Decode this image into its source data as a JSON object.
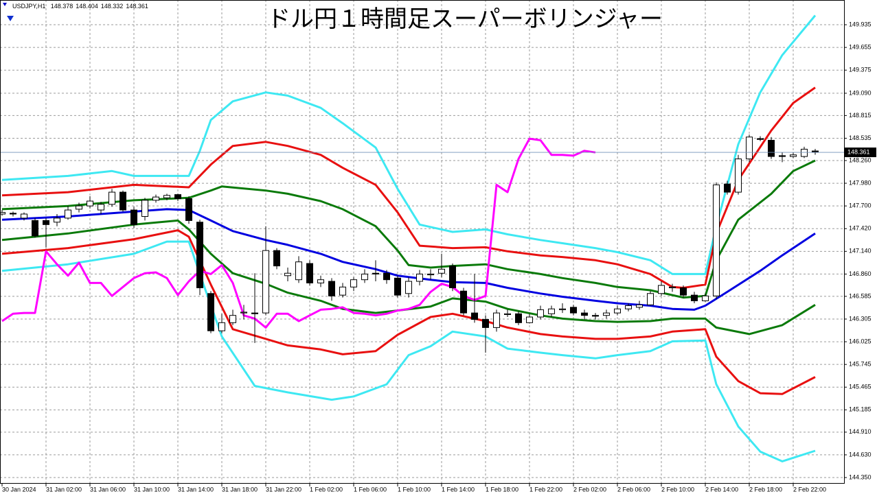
{
  "chart_data": {
    "type": "candlestick",
    "title": "ドル円１時間足スーパーボリンジャー",
    "symbol": "USDJPY,H1",
    "categories": [
      "30 Jan 2024",
      null,
      null,
      null,
      "31 Jan 02:00",
      null,
      null,
      null,
      "31 Jan 06:00",
      null,
      null,
      null,
      "31 Jan 10:00",
      null,
      null,
      null,
      "31 Jan 14:00",
      null,
      null,
      null,
      "31 Jan 18:00",
      null,
      null,
      null,
      "31 Jan 22:00",
      null,
      null,
      null,
      "1 Feb 02:00",
      null,
      null,
      null,
      "1 Feb 06:00",
      null,
      null,
      null,
      "1 Feb 10:00",
      null,
      null,
      null,
      "1 Feb 14:00",
      null,
      null,
      null,
      "1 Feb 18:00",
      null,
      null,
      null,
      "1 Feb 22:00",
      null,
      null,
      null,
      "2 Feb 02:00",
      null,
      null,
      null,
      "2 Feb 06:00",
      null,
      null,
      null,
      "2 Feb 10:00",
      null,
      null,
      null,
      "2 Feb 14:00",
      null,
      null,
      null,
      "2 Feb 18:00",
      null,
      null,
      null,
      "2 Feb 22:00",
      null,
      null
    ],
    "open": [
      147.6,
      147.61,
      147.55,
      147.52,
      147.52,
      147.5,
      147.55,
      147.66,
      147.7,
      147.65,
      147.72,
      147.87,
      147.65,
      147.57,
      147.77,
      147.8,
      147.84,
      147.79,
      147.5,
      146.62,
      146.16,
      146.26,
      146.38,
      146.38,
      146.38,
      147.15,
      146.84,
      146.79,
      146.99,
      146.75,
      146.77,
      146.6,
      146.7,
      146.79,
      146.87,
      146.87,
      146.81,
      146.62,
      146.77,
      146.85,
      146.87,
      146.96,
      146.65,
      146.38,
      146.3,
      146.2,
      146.36,
      146.37,
      146.26,
      146.33,
      146.37,
      146.42,
      146.45,
      146.38,
      146.35,
      146.35,
      146.38,
      146.43,
      146.45,
      146.48,
      146.62,
      146.69,
      146.69,
      146.6,
      146.53,
      146.59,
      147.97,
      147.87,
      148.28,
      148.53,
      148.51,
      148.32,
      148.31,
      148.31,
      148.378
    ],
    "high": [
      147.65,
      147.63,
      147.62,
      147.55,
      147.55,
      147.6,
      147.7,
      147.74,
      147.82,
      147.75,
      147.91,
      147.89,
      147.69,
      147.8,
      147.84,
      147.85,
      147.85,
      147.82,
      147.53,
      146.65,
      146.37,
      146.42,
      146.48,
      146.87,
      147.45,
      147.18,
      146.94,
      147.08,
      147.03,
      146.84,
      146.81,
      146.75,
      146.82,
      146.92,
      147.03,
      146.91,
      146.84,
      146.82,
      146.91,
      146.92,
      147.11,
      146.99,
      146.69,
      146.86,
      146.35,
      146.42,
      146.42,
      146.4,
      146.37,
      146.47,
      146.47,
      146.5,
      146.48,
      146.42,
      146.38,
      146.42,
      146.47,
      146.5,
      146.53,
      146.65,
      146.77,
      146.74,
      146.72,
      146.64,
      146.62,
      147.99,
      148.01,
      148.33,
      148.58,
      148.56,
      148.55,
      148.36,
      148.36,
      148.43,
      148.404
    ],
    "low": [
      147.58,
      147.57,
      147.52,
      147.31,
      147.19,
      147.45,
      147.53,
      147.62,
      147.67,
      147.6,
      147.69,
      147.63,
      147.43,
      147.52,
      147.74,
      147.77,
      147.76,
      147.48,
      146.6,
      146.13,
      146.13,
      146.23,
      146.3,
      146.01,
      146.35,
      146.92,
      146.77,
      146.75,
      146.72,
      146.7,
      146.53,
      146.57,
      146.65,
      146.75,
      146.77,
      146.74,
      146.57,
      146.57,
      146.72,
      146.79,
      146.82,
      146.65,
      146.35,
      146.26,
      145.89,
      146.15,
      146.33,
      146.23,
      146.25,
      146.3,
      146.33,
      146.38,
      146.35,
      146.3,
      146.3,
      146.31,
      146.35,
      146.4,
      146.42,
      146.47,
      146.59,
      146.64,
      146.57,
      146.5,
      146.52,
      146.55,
      147.84,
      147.84,
      148.24,
      148.5,
      148.28,
      148.24,
      148.29,
      148.29,
      148.332
    ],
    "close": [
      147.62,
      147.6,
      147.6,
      147.33,
      147.47,
      147.55,
      147.65,
      147.7,
      147.76,
      147.72,
      147.87,
      147.65,
      147.47,
      147.77,
      147.81,
      147.83,
      147.79,
      147.52,
      146.69,
      146.16,
      146.26,
      146.35,
      146.39,
      146.37,
      147.15,
      146.96,
      146.87,
      147.01,
      146.75,
      146.79,
      146.59,
      146.7,
      146.79,
      146.86,
      146.86,
      146.79,
      146.6,
      146.77,
      146.86,
      146.86,
      146.92,
      146.69,
      146.38,
      146.3,
      146.2,
      146.38,
      146.37,
      146.26,
      146.33,
      146.42,
      146.43,
      146.43,
      146.38,
      146.35,
      146.34,
      146.38,
      146.43,
      146.47,
      146.48,
      146.62,
      146.72,
      146.7,
      146.6,
      146.53,
      146.59,
      147.96,
      147.87,
      148.28,
      148.55,
      148.52,
      148.31,
      148.31,
      148.33,
      148.4,
      148.361
    ],
    "up_color": "#ffffff",
    "down_color": "#000000",
    "series": [
      {
        "color": "#3ee8f2",
        "x": [
          0,
          6,
          10,
          12,
          17,
          18,
          19,
          21,
          24,
          26,
          29,
          31,
          34,
          36,
          38,
          41,
          44,
          46,
          49,
          51,
          54,
          56,
          59,
          61,
          64,
          65,
          67,
          69,
          71,
          74
        ],
        "values": [
          148.02,
          148.07,
          148.13,
          148.07,
          148.07,
          148.38,
          148.76,
          148.99,
          149.1,
          149.06,
          148.91,
          148.72,
          148.42,
          147.91,
          147.47,
          147.38,
          147.41,
          147.35,
          147.28,
          147.24,
          147.18,
          147.13,
          147.03,
          146.86,
          146.86,
          147.45,
          148.46,
          149.1,
          149.56,
          150.05
        ]
      },
      {
        "color": "#3ee8f2",
        "x": [
          0,
          6,
          12,
          15,
          17,
          18,
          20,
          23,
          26,
          30,
          32,
          35,
          37,
          39,
          41,
          44,
          46,
          49,
          51,
          54,
          56,
          59,
          61,
          64,
          65,
          67,
          69,
          71,
          74
        ],
        "values": [
          146.9,
          146.98,
          147.11,
          147.26,
          147.26,
          146.86,
          146.09,
          145.48,
          145.4,
          145.31,
          145.35,
          145.5,
          145.86,
          145.97,
          146.15,
          146.09,
          145.94,
          145.89,
          145.86,
          145.82,
          145.86,
          145.91,
          146.03,
          146.04,
          145.5,
          144.98,
          144.67,
          144.55,
          144.68
        ]
      },
      {
        "color": "#e81010",
        "x": [
          0,
          6,
          12,
          17,
          19,
          21,
          24,
          26,
          29,
          31,
          34,
          36,
          38,
          41,
          44,
          46,
          49,
          51,
          54,
          56,
          59,
          61,
          62,
          64,
          65,
          67,
          70,
          72,
          74
        ],
        "values": [
          147.83,
          147.87,
          147.96,
          147.93,
          148.21,
          148.44,
          148.49,
          148.44,
          148.33,
          148.17,
          147.96,
          147.62,
          147.21,
          147.18,
          147.19,
          147.14,
          147.09,
          147.07,
          147.03,
          146.98,
          146.86,
          146.7,
          146.69,
          146.73,
          147.36,
          148.02,
          148.63,
          148.97,
          149.16
        ]
      },
      {
        "color": "#e81010",
        "x": [
          0,
          6,
          12,
          16,
          17,
          19,
          21,
          24,
          26,
          29,
          31,
          34,
          36,
          39,
          41,
          44,
          46,
          49,
          51,
          54,
          56,
          59,
          61,
          64,
          65,
          67,
          69,
          71,
          74
        ],
        "values": [
          147.11,
          147.18,
          147.29,
          147.4,
          147.32,
          146.73,
          146.18,
          146.06,
          145.98,
          145.93,
          145.87,
          145.91,
          146.11,
          146.33,
          146.37,
          146.28,
          146.2,
          146.12,
          146.09,
          146.06,
          146.06,
          146.09,
          146.15,
          146.18,
          145.84,
          145.54,
          145.39,
          145.38,
          145.59
        ]
      },
      {
        "color": "#0a7a0a",
        "x": [
          0,
          6,
          12,
          17,
          19,
          20,
          24,
          26,
          29,
          31,
          34,
          36,
          37,
          39,
          41,
          44,
          46,
          49,
          51,
          54,
          56,
          59,
          61,
          62,
          64,
          65,
          67,
          70,
          72,
          74
        ],
        "values": [
          147.66,
          147.7,
          147.77,
          147.8,
          147.89,
          147.94,
          147.89,
          147.85,
          147.76,
          147.66,
          147.45,
          147.15,
          146.97,
          146.94,
          146.96,
          146.98,
          146.92,
          146.86,
          146.81,
          146.75,
          146.7,
          146.66,
          146.6,
          146.57,
          146.59,
          147.03,
          147.53,
          147.85,
          148.13,
          148.26
        ]
      },
      {
        "color": "#0a7a0a",
        "x": [
          0,
          6,
          12,
          16,
          17,
          19,
          21,
          24,
          26,
          29,
          31,
          34,
          36,
          39,
          41,
          44,
          46,
          49,
          51,
          54,
          56,
          59,
          61,
          64,
          65,
          68,
          71,
          74
        ],
        "values": [
          147.28,
          147.36,
          147.47,
          147.52,
          147.41,
          147.11,
          146.87,
          146.74,
          146.63,
          146.53,
          146.43,
          146.38,
          146.41,
          146.46,
          146.56,
          146.52,
          146.43,
          146.35,
          146.31,
          146.28,
          146.27,
          146.28,
          146.31,
          146.31,
          146.2,
          146.12,
          146.23,
          146.48
        ]
      },
      {
        "color": "#0000e0",
        "x": [
          0,
          6,
          12,
          15,
          17,
          19,
          21,
          24,
          26,
          29,
          31,
          34,
          36,
          39,
          41,
          44,
          46,
          49,
          51,
          54,
          56,
          59,
          61,
          63,
          64,
          66,
          69,
          71,
          74
        ],
        "values": [
          147.53,
          147.57,
          147.63,
          147.66,
          147.65,
          147.52,
          147.39,
          147.28,
          147.22,
          147.11,
          147.01,
          146.92,
          146.84,
          146.79,
          146.76,
          146.75,
          146.69,
          146.62,
          146.58,
          146.53,
          146.5,
          146.47,
          146.43,
          146.42,
          146.47,
          146.64,
          146.9,
          147.09,
          147.36
        ]
      },
      {
        "color": "#ff00ff",
        "x": [
          0,
          1,
          2,
          3,
          4,
          5,
          6,
          7,
          8,
          9,
          10,
          11,
          12,
          13,
          14,
          15,
          16,
          17,
          18,
          19,
          20,
          21,
          22,
          23,
          24,
          25,
          26,
          27,
          28,
          29,
          30,
          31,
          32,
          33,
          34,
          35,
          36,
          37,
          38,
          39,
          40,
          41,
          42,
          43,
          44,
          45,
          46,
          47,
          48,
          49,
          50,
          51,
          52,
          53,
          54
        ],
        "values": [
          146.28,
          146.37,
          146.38,
          146.38,
          147.14,
          146.98,
          146.84,
          147.0,
          146.75,
          146.75,
          146.59,
          146.7,
          146.81,
          146.87,
          146.88,
          146.81,
          146.6,
          146.77,
          146.9,
          146.86,
          146.97,
          146.75,
          146.35,
          146.31,
          146.2,
          146.37,
          146.37,
          146.28,
          146.35,
          146.42,
          146.43,
          146.45,
          146.38,
          146.37,
          146.35,
          146.37,
          146.41,
          146.43,
          146.48,
          146.64,
          146.74,
          146.7,
          146.59,
          146.54,
          146.59,
          147.96,
          147.87,
          148.28,
          148.53,
          148.51,
          148.33,
          148.33,
          148.32,
          148.38,
          148.36
        ]
      }
    ],
    "ylim": [
      144.274,
      150.24
    ],
    "yticks": [
      149.935,
      149.655,
      149.375,
      {
        "value": 149.09,
        "label": "149.090"
      },
      148.815,
      148.535,
      {
        "value": 148.26,
        "label": "148.260"
      },
      {
        "value": 147.98,
        "label": "147.980"
      },
      {
        "value": 147.7,
        "label": "147.700"
      },
      {
        "value": 147.42,
        "label": "147.420"
      },
      {
        "value": 147.14,
        "label": "147.140"
      },
      {
        "value": 146.86,
        "label": "146.860"
      },
      146.585,
      146.305,
      146.025,
      145.745,
      145.465,
      145.185,
      {
        "value": 144.91,
        "label": "144.910"
      },
      {
        "value": 144.63,
        "label": "144.630"
      },
      {
        "value": 144.35,
        "label": "144.350"
      }
    ],
    "grid": true
  }
}
